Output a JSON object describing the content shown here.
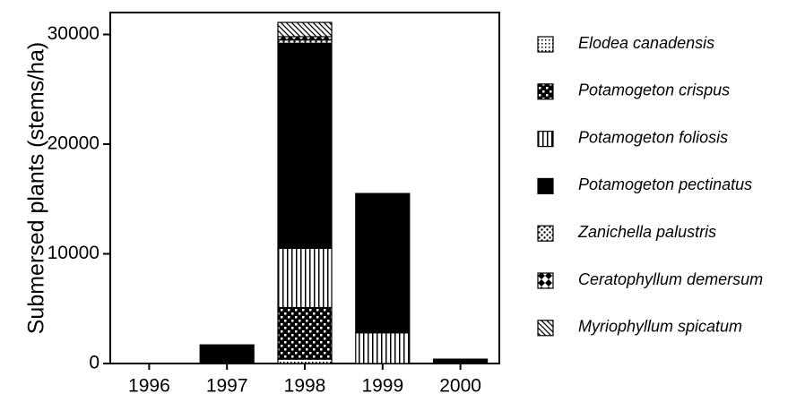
{
  "chart_data": {
    "type": "bar",
    "stacked": true,
    "y_label": "Submersed plants (stems/ha)",
    "categories": [
      "1996",
      "1997",
      "1998",
      "1999",
      "2000"
    ],
    "series": [
      {
        "name": "Elodea canadensis",
        "color": "#000000",
        "values": [
          0,
          0,
          400,
          0,
          0
        ]
      },
      {
        "name": "Potamogeton crispus",
        "color": "#000000",
        "values": [
          0,
          0,
          4700,
          0,
          0
        ]
      },
      {
        "name": "Potamogeton foliosis",
        "color": "#000000",
        "values": [
          0,
          0,
          5400,
          2800,
          0
        ]
      },
      {
        "name": "Potamogeton pectinatus",
        "color": "#000000",
        "values": [
          0,
          1700,
          18700,
          12700,
          400
        ]
      },
      {
        "name": "Zanichella palustris",
        "color": "#000000",
        "values": [
          0,
          0,
          300,
          0,
          0
        ]
      },
      {
        "name": "Ceratophyllum demersum",
        "color": "#000000",
        "values": [
          0,
          0,
          300,
          0,
          0
        ]
      },
      {
        "name": "Myriophyllum spicatum",
        "color": "#000000",
        "values": [
          0,
          0,
          1300,
          0,
          0
        ]
      }
    ],
    "ylim": [
      0,
      32000
    ],
    "yticks": [
      0,
      10000,
      20000,
      30000
    ],
    "grid": false,
    "legend": "right"
  }
}
